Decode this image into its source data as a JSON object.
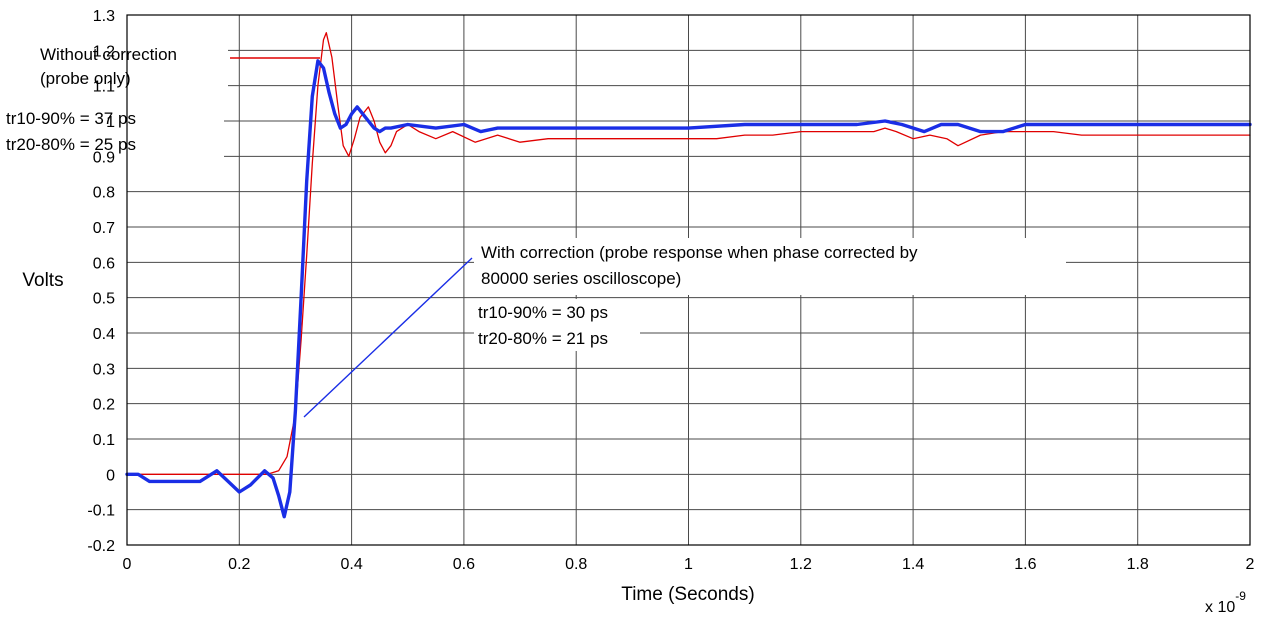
{
  "chart_data": {
    "type": "line",
    "xlabel": "Time (Seconds)",
    "x_multiplier": "x 10",
    "x_multiplier_exp": "-9",
    "ylabel": "Volts",
    "xlim": [
      0,
      2
    ],
    "ylim": [
      -0.2,
      1.3
    ],
    "grid": true,
    "x_ticks": [
      "0",
      "0.2",
      "0.4",
      "0.6",
      "0.8",
      "1",
      "1.2",
      "1.4",
      "1.6",
      "1.8",
      "2"
    ],
    "y_ticks": [
      "-0.2",
      "-0.1",
      "0",
      "0.1",
      "0.2",
      "0.3",
      "0.4",
      "0.5",
      "0.6",
      "0.7",
      "0.8",
      "0.9",
      "1",
      "1.1",
      "1.2",
      "1.3"
    ],
    "series": [
      {
        "name": "Without correction (probe only)",
        "color": "#e00000",
        "x": [
          0,
          0.1,
          0.2,
          0.25,
          0.27,
          0.285,
          0.3,
          0.31,
          0.32,
          0.33,
          0.34,
          0.35,
          0.355,
          0.365,
          0.375,
          0.385,
          0.395,
          0.405,
          0.415,
          0.43,
          0.44,
          0.45,
          0.46,
          0.47,
          0.48,
          0.5,
          0.52,
          0.55,
          0.58,
          0.62,
          0.66,
          0.7,
          0.75,
          0.8,
          0.85,
          0.9,
          0.95,
          1.0,
          1.05,
          1.1,
          1.15,
          1.2,
          1.25,
          1.3,
          1.33,
          1.35,
          1.37,
          1.4,
          1.43,
          1.46,
          1.48,
          1.52,
          1.56,
          1.6,
          1.65,
          1.7,
          1.75,
          1.8,
          1.85,
          1.9,
          1.95,
          2.0
        ],
        "y": [
          0,
          0,
          0,
          0,
          0.01,
          0.05,
          0.17,
          0.38,
          0.62,
          0.88,
          1.1,
          1.23,
          1.25,
          1.18,
          1.05,
          0.93,
          0.9,
          0.95,
          1.01,
          1.04,
          1.0,
          0.94,
          0.91,
          0.93,
          0.97,
          0.99,
          0.97,
          0.95,
          0.97,
          0.94,
          0.96,
          0.94,
          0.95,
          0.95,
          0.95,
          0.95,
          0.95,
          0.95,
          0.95,
          0.96,
          0.96,
          0.97,
          0.97,
          0.97,
          0.97,
          0.98,
          0.97,
          0.95,
          0.96,
          0.95,
          0.93,
          0.96,
          0.97,
          0.97,
          0.97,
          0.96,
          0.96,
          0.96,
          0.96,
          0.96,
          0.96,
          0.96
        ]
      },
      {
        "name": "With correction (probe response when phase corrected by 80000 series oscilloscope)",
        "color": "#1a2ee6",
        "x": [
          0,
          0.02,
          0.04,
          0.07,
          0.1,
          0.13,
          0.16,
          0.18,
          0.2,
          0.22,
          0.245,
          0.26,
          0.27,
          0.28,
          0.29,
          0.3,
          0.31,
          0.32,
          0.33,
          0.34,
          0.35,
          0.36,
          0.37,
          0.38,
          0.39,
          0.4,
          0.41,
          0.42,
          0.43,
          0.44,
          0.45,
          0.46,
          0.47,
          0.5,
          0.55,
          0.6,
          0.63,
          0.66,
          0.7,
          0.75,
          0.8,
          0.9,
          1.0,
          1.1,
          1.2,
          1.25,
          1.3,
          1.35,
          1.38,
          1.42,
          1.45,
          1.48,
          1.52,
          1.56,
          1.6,
          1.65,
          1.7,
          1.8,
          1.9,
          2.0
        ],
        "y": [
          0,
          0,
          -0.02,
          -0.02,
          -0.02,
          -0.02,
          0.01,
          -0.02,
          -0.05,
          -0.03,
          0.01,
          -0.01,
          -0.06,
          -0.12,
          -0.05,
          0.18,
          0.5,
          0.83,
          1.07,
          1.17,
          1.15,
          1.08,
          1.02,
          0.98,
          0.99,
          1.02,
          1.04,
          1.02,
          1.0,
          0.98,
          0.97,
          0.98,
          0.98,
          0.99,
          0.98,
          0.99,
          0.97,
          0.98,
          0.98,
          0.98,
          0.98,
          0.98,
          0.98,
          0.99,
          0.99,
          0.99,
          0.99,
          1.0,
          0.99,
          0.97,
          0.99,
          0.99,
          0.97,
          0.97,
          0.99,
          0.99,
          0.99,
          0.99,
          0.99,
          0.99
        ]
      }
    ]
  },
  "annotations": {
    "without_line1": "Without correction",
    "without_line2": "(probe only)",
    "without_tr1": "tr10-90% = 37 ps",
    "without_tr2": "tr20-80% = 25 ps",
    "with_line1": "With correction (probe response when phase corrected by",
    "with_line2": "80000 series oscilloscope)",
    "with_tr1": "tr10-90% = 30 ps",
    "with_tr2": "tr20-80% = 21 ps"
  }
}
